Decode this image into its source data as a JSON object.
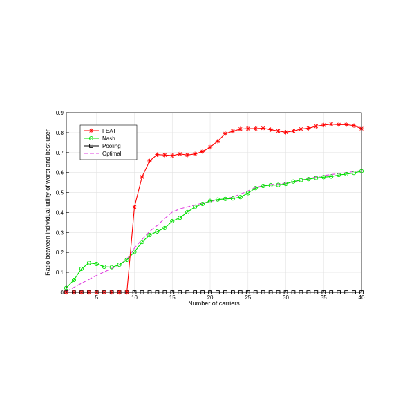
{
  "chart_data": {
    "type": "line",
    "title": "",
    "xlabel": "Number of carriers",
    "ylabel": "Ratio between individual utility of worst and best user",
    "xlim": [
      1,
      40
    ],
    "ylim": [
      0,
      0.9
    ],
    "x_ticks": [
      5,
      10,
      15,
      20,
      25,
      30,
      35,
      40
    ],
    "y_ticks": [
      0,
      0.1,
      0.2,
      0.3,
      0.4,
      0.5,
      0.6,
      0.7,
      0.8,
      0.9
    ],
    "grid": true,
    "legend_position": "top-left",
    "x": [
      1,
      2,
      3,
      4,
      5,
      6,
      7,
      8,
      9,
      10,
      11,
      12,
      13,
      14,
      15,
      16,
      17,
      18,
      19,
      20,
      21,
      22,
      23,
      24,
      25,
      26,
      27,
      28,
      29,
      30,
      31,
      32,
      33,
      34,
      35,
      36,
      37,
      38,
      39,
      40
    ],
    "series": [
      {
        "name": "FEAT",
        "color": "#ff0000",
        "marker": "star",
        "line": "solid",
        "values": [
          0,
          0,
          0,
          0,
          0,
          0,
          0,
          0,
          0,
          0.428,
          0.578,
          0.658,
          0.69,
          0.688,
          0.685,
          0.693,
          0.688,
          0.693,
          0.705,
          0.727,
          0.757,
          0.795,
          0.807,
          0.818,
          0.82,
          0.82,
          0.822,
          0.815,
          0.808,
          0.802,
          0.808,
          0.818,
          0.822,
          0.832,
          0.838,
          0.842,
          0.84,
          0.84,
          0.835,
          0.82
        ]
      },
      {
        "name": "Nash",
        "color": "#00e000",
        "marker": "circle",
        "line": "solid",
        "values": [
          0.022,
          0.062,
          0.118,
          0.147,
          0.142,
          0.128,
          0.126,
          0.138,
          0.163,
          0.203,
          0.252,
          0.287,
          0.305,
          0.322,
          0.357,
          0.373,
          0.402,
          0.428,
          0.443,
          0.458,
          0.465,
          0.468,
          0.47,
          0.477,
          0.497,
          0.522,
          0.533,
          0.537,
          0.538,
          0.543,
          0.555,
          0.562,
          0.567,
          0.573,
          0.577,
          0.58,
          0.588,
          0.592,
          0.598,
          0.607
        ]
      },
      {
        "name": "Pooling",
        "color": "#000000",
        "marker": "square",
        "line": "solid",
        "values": [
          0,
          0,
          0,
          0,
          0,
          0,
          0,
          0,
          0,
          0,
          0,
          0,
          0,
          0,
          0,
          0,
          0,
          0,
          0,
          0,
          0,
          0,
          0,
          0,
          0,
          0,
          0,
          0,
          0,
          0,
          0,
          0,
          0,
          0,
          0,
          0,
          0,
          0,
          0,
          0
        ]
      },
      {
        "name": "Optimal",
        "color": "#e040e0",
        "marker": "none",
        "line": "dashed",
        "values": [
          0.005,
          0.025,
          0.045,
          0.065,
          0.085,
          0.102,
          0.12,
          0.138,
          0.165,
          0.222,
          0.265,
          0.305,
          0.335,
          0.37,
          0.402,
          0.418,
          0.428,
          0.438,
          0.447,
          0.455,
          0.462,
          0.468,
          0.478,
          0.492,
          0.508,
          0.525,
          0.535,
          0.54,
          0.543,
          0.547,
          0.553,
          0.562,
          0.57,
          0.578,
          0.585,
          0.59,
          0.595,
          0.6,
          0.605,
          0.61
        ]
      }
    ]
  }
}
